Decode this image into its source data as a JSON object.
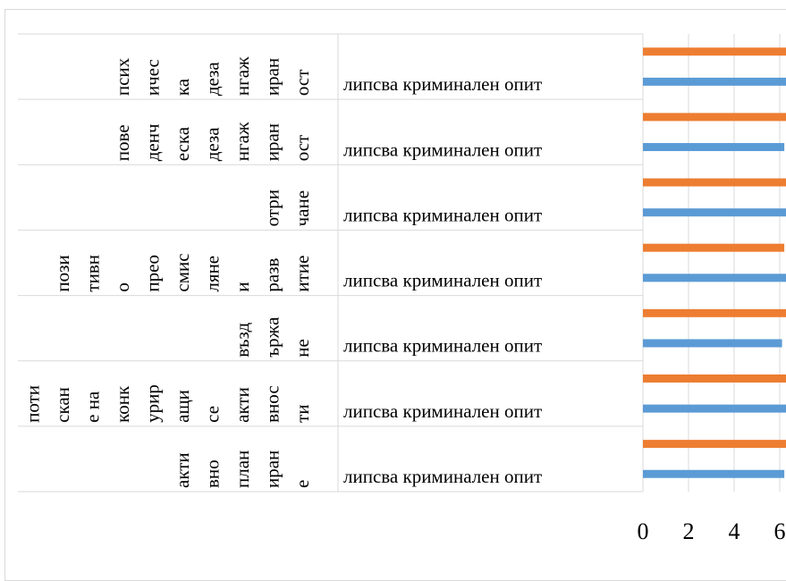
{
  "chart_data": {
    "type": "bar",
    "orientation": "horizontal",
    "categories": [
      {
        "outer": "активно планиране",
        "outer_lines": [
          "акти",
          "вно",
          "план",
          "иран",
          "е"
        ],
        "inner": "липсва криминален опит"
      },
      {
        "outer": "потискане на конкуриращи се активности",
        "outer_lines": [
          "поти",
          "скан",
          "е на",
          "конк",
          "урир",
          "ащи",
          "се",
          "акти",
          "внос",
          "ти"
        ],
        "inner": "липсва криминален опит"
      },
      {
        "outer": "въздържане",
        "outer_lines": [
          "възд",
          "ържа",
          "не"
        ],
        "inner": "липсва криминален опит"
      },
      {
        "outer": "позитивно преосмисляне и развитие",
        "outer_lines": [
          "пози",
          "тивн",
          "о",
          "прео",
          "смис",
          "ляне",
          "и",
          "разв",
          "итие"
        ],
        "inner": "липсва криминален опит"
      },
      {
        "outer": "отричане",
        "outer_lines": [
          "отри",
          "чане"
        ],
        "inner": "липсва криминален опит"
      },
      {
        "outer": "поведенческа дезангажираност",
        "outer_lines": [
          "пове",
          "денч",
          "еска",
          "деза",
          "нгаж",
          "иран",
          "ост"
        ],
        "inner": "липсва криминален опит"
      },
      {
        "outer": "психическа дезангажираност",
        "outer_lines": [
          "псих",
          "ичес",
          "ка",
          "деза",
          "нгаж",
          "иран",
          "ост"
        ],
        "inner": "липсва криминален опит"
      }
    ],
    "series": [
      {
        "color": "#5b9bd5",
        "values": [
          6.2,
          6.4,
          6.1,
          6.5,
          6.3,
          6.2,
          6.4
        ]
      },
      {
        "color": "#ed7d31",
        "values": [
          6.4,
          6.3,
          6.5,
          6.2,
          6.4,
          6.6,
          6.3
        ]
      }
    ],
    "bottom_series_color": "#5b9bd5",
    "bottom_series_value": 6.3,
    "top_series_color": "#ed7d31",
    "top_series_value": 6.5,
    "x_ticks": [
      "0",
      "2",
      "4",
      "6"
    ],
    "xlim": [
      0,
      6.3
    ],
    "grid": true,
    "legend": "none"
  }
}
